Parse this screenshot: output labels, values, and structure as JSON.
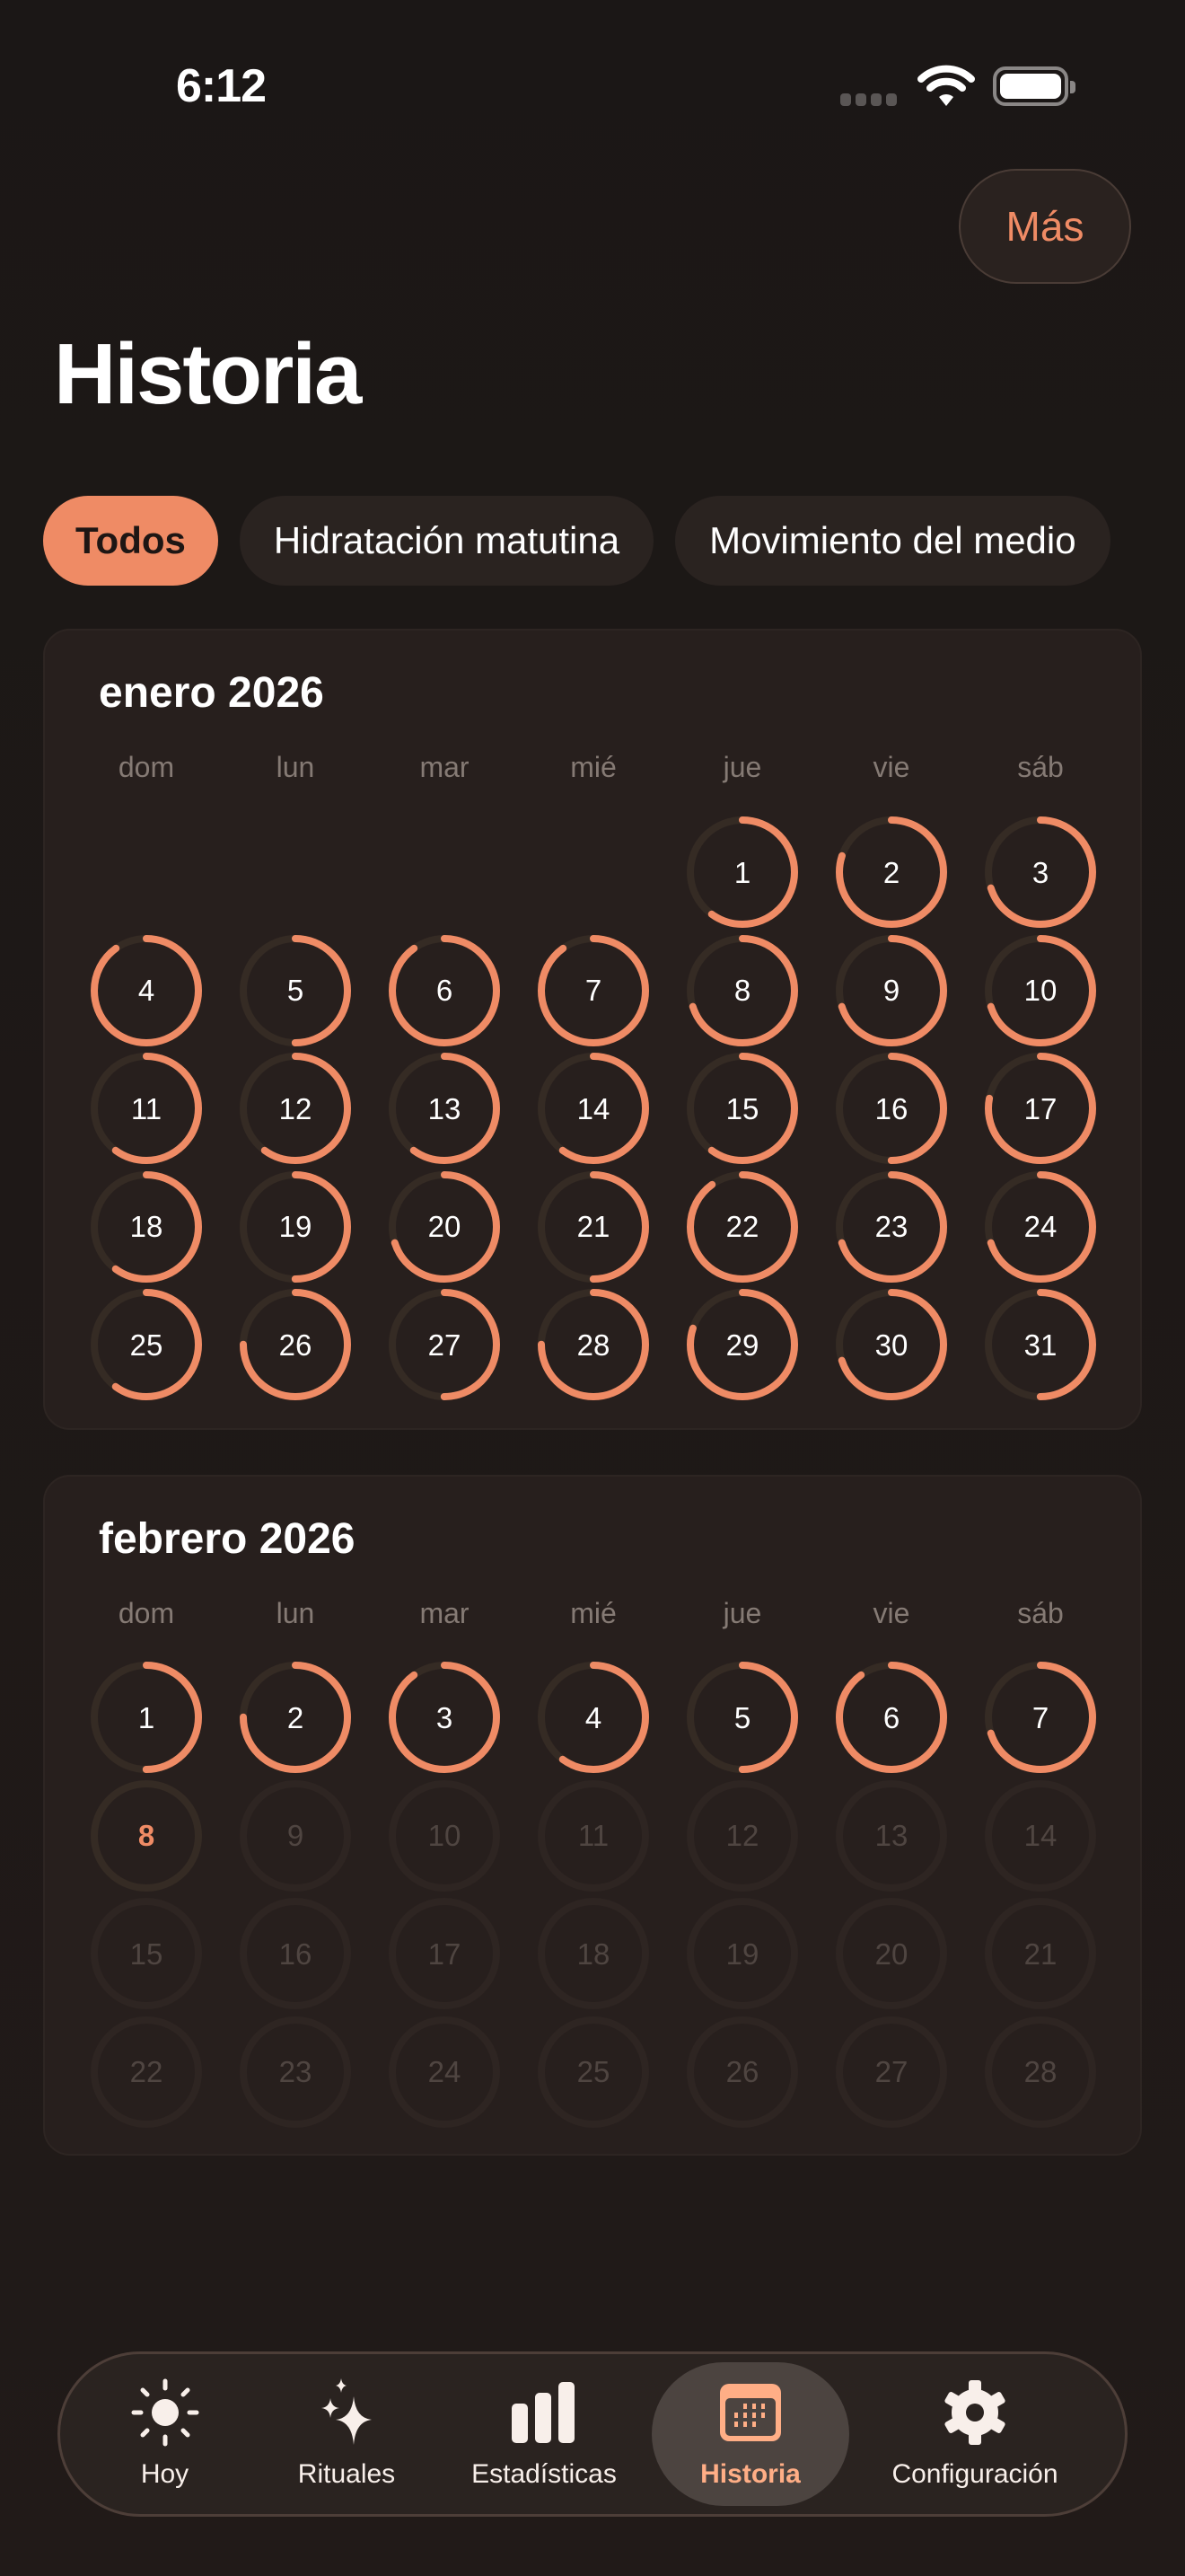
{
  "status_bar": {
    "time": "6:12"
  },
  "header": {
    "more_label": "Más",
    "title": "Historia"
  },
  "filters": [
    {
      "label": "Todos",
      "active": true
    },
    {
      "label": "Hidratación matutina",
      "active": false
    },
    {
      "label": "Movimiento del medio",
      "active": false
    }
  ],
  "colors": {
    "accent": "#ef8b65",
    "ring_track": "#352b24",
    "background": "#1e1816",
    "card": "#271f1d"
  },
  "weekdays": [
    "dom",
    "lun",
    "mar",
    "mié",
    "jue",
    "vie",
    "sáb"
  ],
  "months": [
    {
      "title": "enero 2026",
      "year": 2026,
      "month": 1,
      "days": [
        {
          "day": "1",
          "progress": 0.6
        },
        {
          "day": "2",
          "progress": 0.8
        },
        {
          "day": "3",
          "progress": 0.7
        },
        {
          "day": "4",
          "progress": 0.9
        },
        {
          "day": "5",
          "progress": 0.5
        },
        {
          "day": "6",
          "progress": 0.9
        },
        {
          "day": "7",
          "progress": 0.9
        },
        {
          "day": "8",
          "progress": 0.7
        },
        {
          "day": "9",
          "progress": 0.7
        },
        {
          "day": "10",
          "progress": 0.7
        },
        {
          "day": "11",
          "progress": 0.6
        },
        {
          "day": "12",
          "progress": 0.6
        },
        {
          "day": "13",
          "progress": 0.6
        },
        {
          "day": "14",
          "progress": 0.6
        },
        {
          "day": "15",
          "progress": 0.6
        },
        {
          "day": "16",
          "progress": 0.5
        },
        {
          "day": "17",
          "progress": 0.78
        },
        {
          "day": "18",
          "progress": 0.6
        },
        {
          "day": "19",
          "progress": 0.5
        },
        {
          "day": "20",
          "progress": 0.7
        },
        {
          "day": "21",
          "progress": 0.5
        },
        {
          "day": "22",
          "progress": 0.9
        },
        {
          "day": "23",
          "progress": 0.7
        },
        {
          "day": "24",
          "progress": 0.7
        },
        {
          "day": "25",
          "progress": 0.6
        },
        {
          "day": "26",
          "progress": 0.75
        },
        {
          "day": "27",
          "progress": 0.5
        },
        {
          "day": "28",
          "progress": 0.75
        },
        {
          "day": "29",
          "progress": 0.8
        },
        {
          "day": "30",
          "progress": 0.7
        },
        {
          "day": "31",
          "progress": 0.5
        }
      ]
    },
    {
      "title": "febrero 2026",
      "year": 2026,
      "month": 2,
      "days": [
        {
          "day": "1",
          "progress": 0.5
        },
        {
          "day": "2",
          "progress": 0.75
        },
        {
          "day": "3",
          "progress": 0.9
        },
        {
          "day": "4",
          "progress": 0.6
        },
        {
          "day": "5",
          "progress": 0.5
        },
        {
          "day": "6",
          "progress": 0.9
        },
        {
          "day": "7",
          "progress": 0.7
        },
        {
          "day": "8",
          "progress": 0,
          "state": "today"
        },
        {
          "day": "9",
          "progress": 0,
          "state": "future"
        },
        {
          "day": "10",
          "progress": 0,
          "state": "future"
        },
        {
          "day": "11",
          "progress": 0,
          "state": "future"
        },
        {
          "day": "12",
          "progress": 0,
          "state": "future"
        },
        {
          "day": "13",
          "progress": 0,
          "state": "future"
        },
        {
          "day": "14",
          "progress": 0,
          "state": "future"
        },
        {
          "day": "15",
          "progress": 0,
          "state": "future"
        },
        {
          "day": "16",
          "progress": 0,
          "state": "future"
        },
        {
          "day": "17",
          "progress": 0,
          "state": "future"
        },
        {
          "day": "18",
          "progress": 0,
          "state": "future"
        },
        {
          "day": "19",
          "progress": 0,
          "state": "future"
        },
        {
          "day": "20",
          "progress": 0,
          "state": "future"
        },
        {
          "day": "21",
          "progress": 0,
          "state": "future"
        },
        {
          "day": "22",
          "progress": 0,
          "state": "future"
        },
        {
          "day": "23",
          "progress": 0,
          "state": "future"
        },
        {
          "day": "24",
          "progress": 0,
          "state": "future"
        },
        {
          "day": "25",
          "progress": 0,
          "state": "future"
        },
        {
          "day": "26",
          "progress": 0,
          "state": "future"
        },
        {
          "day": "27",
          "progress": 0,
          "state": "future"
        },
        {
          "day": "28",
          "progress": 0,
          "state": "future"
        }
      ]
    }
  ],
  "tab_bar": [
    {
      "label": "Hoy",
      "icon": "sun-icon"
    },
    {
      "label": "Rituales",
      "icon": "sparkles-icon"
    },
    {
      "label": "Estadísticas",
      "icon": "bar-chart-icon"
    },
    {
      "label": "Historia",
      "icon": "calendar-icon",
      "active": true
    },
    {
      "label": "Configuración",
      "icon": "gear-icon"
    }
  ]
}
